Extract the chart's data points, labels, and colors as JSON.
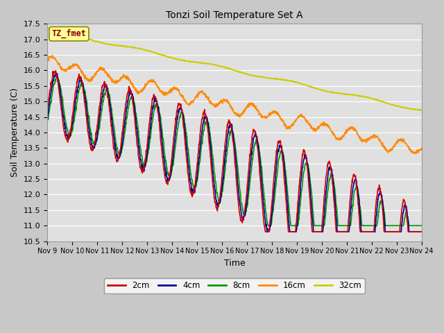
{
  "title": "Tonzi Soil Temperature Set A",
  "xlabel": "Time",
  "ylabel": "Soil Temperature (C)",
  "ylim": [
    10.5,
    17.5
  ],
  "x_tick_labels": [
    "Nov 9",
    "Nov 10",
    "Nov 11",
    "Nov 12",
    "Nov 13",
    "Nov 14",
    "Nov 15",
    "Nov 16",
    "Nov 17",
    "Nov 18",
    "Nov 19",
    "Nov 20",
    "Nov 21",
    "Nov 22",
    "Nov 23",
    "Nov 24"
  ],
  "fig_bg_color": "#c8c8c8",
  "axes_bg_color": "#e0e0e0",
  "label_box_text": "TZ_fmet",
  "label_box_color": "#ffff99",
  "label_box_border": "#888800",
  "label_text_color": "#880000",
  "series": {
    "2cm": {
      "color": "#cc0000",
      "lw": 1.2
    },
    "4cm": {
      "color": "#000099",
      "lw": 1.2
    },
    "8cm": {
      "color": "#009900",
      "lw": 1.2
    },
    "16cm": {
      "color": "#ff8800",
      "lw": 1.2
    },
    "32cm": {
      "color": "#cccc00",
      "lw": 1.2
    }
  }
}
